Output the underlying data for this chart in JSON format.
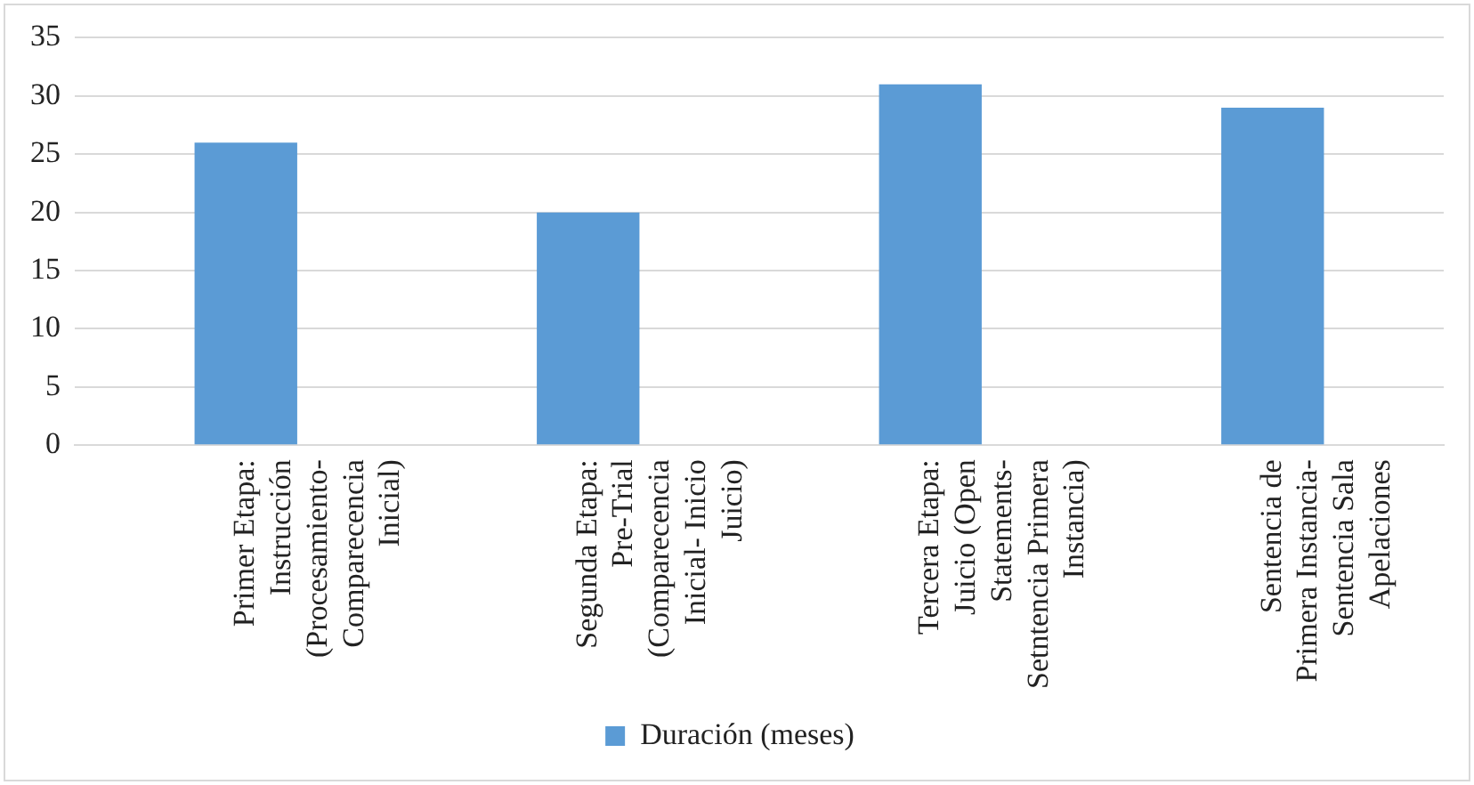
{
  "chart_data": {
    "type": "bar",
    "categories": [
      "Primer Etapa: Instrucción (Procesamiento-Comparecencia Inicial)",
      "Segunda Etapa: Pre-Trial (Comparecencia Inicial- Inicio Juicio)",
      "Tercera Etapa: Juicio (Open Statements-Setntencia Primera Instancia)",
      "Sentencia de Primera Instancia-Sentencia Sala Apelaciones"
    ],
    "series": [
      {
        "name": "Duración (meses)",
        "color": "#5b9bd5",
        "values": [
          26,
          20,
          31,
          29
        ]
      }
    ],
    "ylim": [
      0,
      35
    ],
    "yticks": [
      0,
      5,
      10,
      15,
      20,
      25,
      30,
      35
    ],
    "grid": "y",
    "legend": "bottom"
  }
}
